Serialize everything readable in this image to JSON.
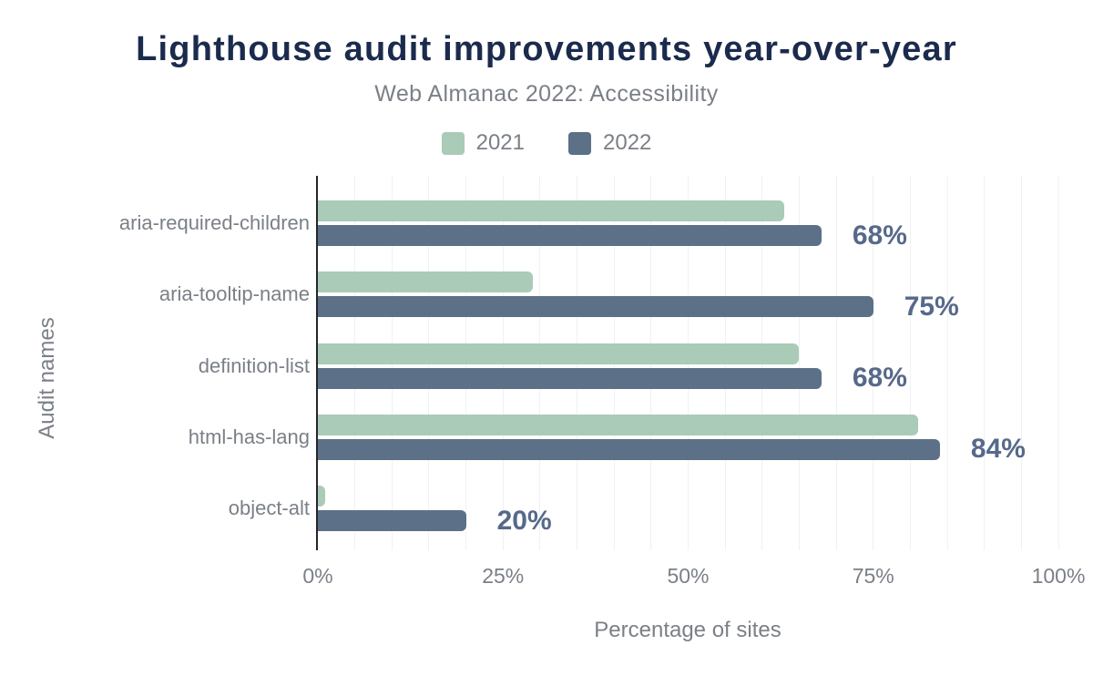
{
  "chart_data": {
    "type": "bar",
    "orientation": "horizontal",
    "title": "Lighthouse audit improvements year-over-year",
    "subtitle": "Web Almanac 2022: Accessibility",
    "xlabel": "Percentage of sites",
    "ylabel": "Audit names",
    "categories": [
      "aria-required-children",
      "aria-tooltip-name",
      "definition-list",
      "html-has-lang",
      "object-alt"
    ],
    "series": [
      {
        "name": "2021",
        "color": "#a9cbb8",
        "values": [
          63,
          29,
          65,
          81,
          1
        ]
      },
      {
        "name": "2022",
        "color": "#5c7087",
        "values": [
          68,
          75,
          68,
          84,
          20
        ]
      }
    ],
    "value_labels": [
      "68%",
      "75%",
      "68%",
      "84%",
      "20%"
    ],
    "x_ticks": [
      {
        "value": 0,
        "label": "0%"
      },
      {
        "value": 25,
        "label": "25%"
      },
      {
        "value": 50,
        "label": "50%"
      },
      {
        "value": 75,
        "label": "75%"
      },
      {
        "value": 100,
        "label": "100%"
      }
    ],
    "xlim": [
      0,
      100
    ],
    "grid": "vertical gridlines every 5%",
    "legend_position": "top-center"
  },
  "colors": {
    "background": "#ffffff",
    "title": "#1b2b4d",
    "muted_text": "#7b8087",
    "series_2021": "#a9cbb8",
    "series_2022": "#5c7087",
    "value_label": "#57698a",
    "axis_line": "#24262a",
    "gridline": "#f0f1f2"
  }
}
